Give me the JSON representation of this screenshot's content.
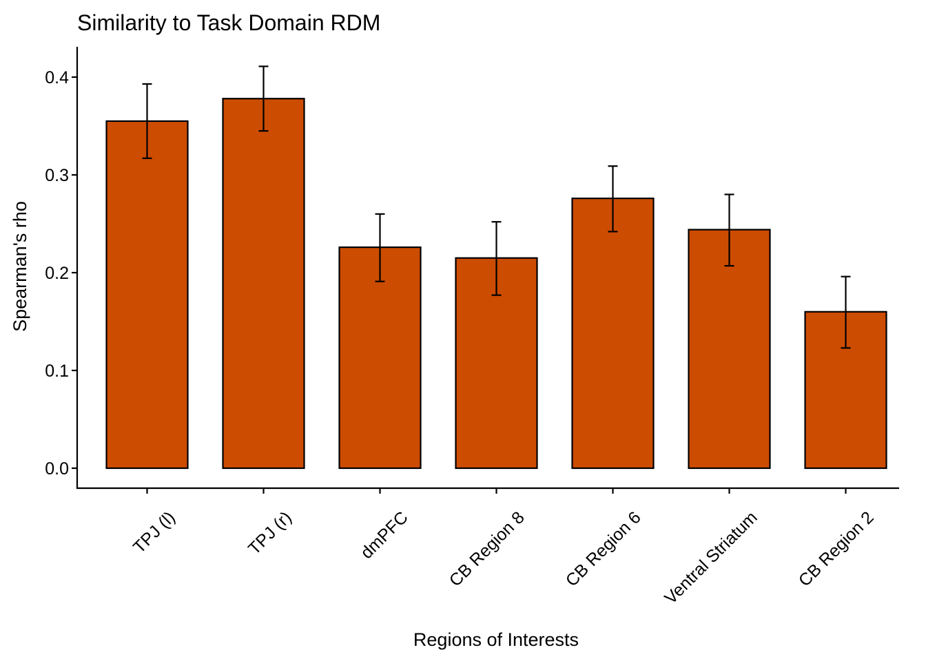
{
  "chart_data": {
    "type": "bar",
    "title": "Similarity to Task Domain RDM",
    "xlabel": "Regions of Interests",
    "ylabel": "Spearman's rho",
    "categories": [
      "TPJ (l)",
      "TPJ (r)",
      "dmPFC",
      "CB Region 8",
      "CB Region 6",
      "Ventral Striatum",
      "CB Region 2"
    ],
    "values": [
      0.355,
      0.378,
      0.226,
      0.215,
      0.276,
      0.244,
      0.16
    ],
    "error_lower": [
      0.317,
      0.345,
      0.191,
      0.177,
      0.242,
      0.207,
      0.123
    ],
    "error_upper": [
      0.393,
      0.411,
      0.26,
      0.252,
      0.309,
      0.28,
      0.196
    ],
    "ylim": [
      -0.02,
      0.43
    ],
    "yticks": [
      0.0,
      0.1,
      0.2,
      0.3,
      0.4
    ],
    "ytick_labels": [
      "0.0",
      "0.1",
      "0.2",
      "0.3",
      "0.4"
    ],
    "bar_color": "#CC4C02",
    "grid": false,
    "legend": "none"
  }
}
